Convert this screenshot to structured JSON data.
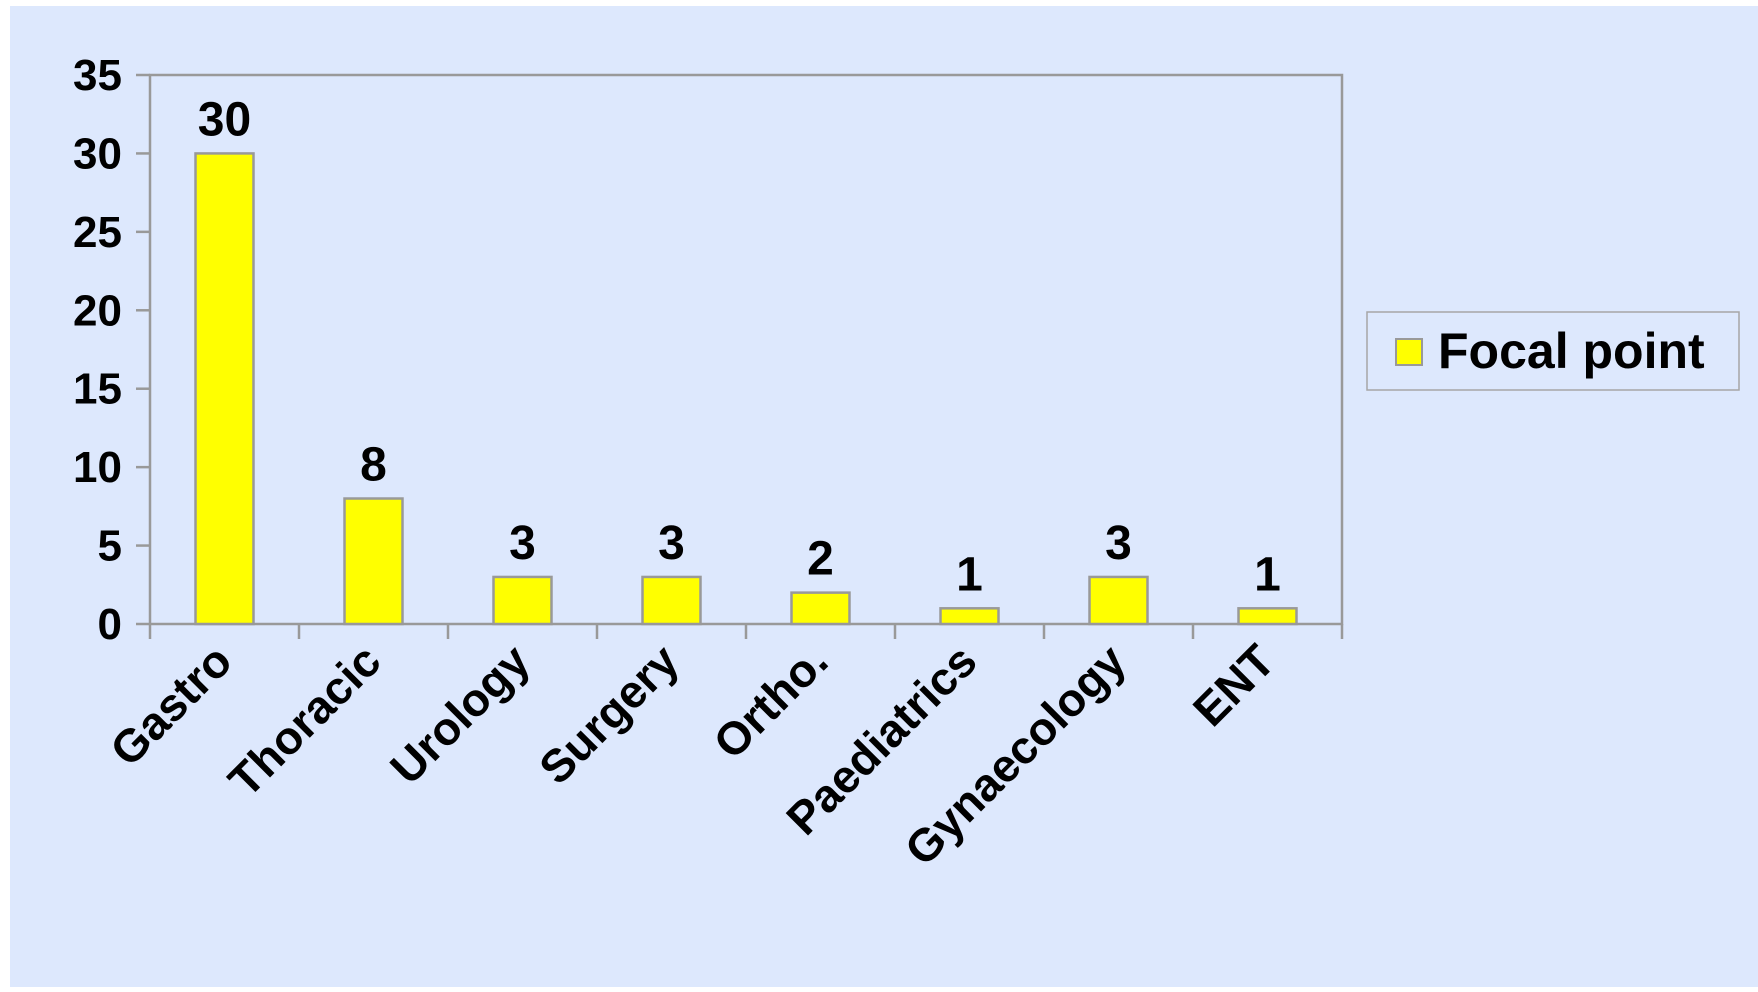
{
  "chart_data": {
    "type": "bar",
    "categories": [
      "Gastro",
      "Thoracic",
      "Urology",
      "Surgery",
      "Ortho.",
      "Paediatrics",
      "Gynaecology",
      "ENT"
    ],
    "series": [
      {
        "name": "Focal point",
        "values": [
          30,
          8,
          3,
          3,
          2,
          1,
          3,
          1
        ]
      }
    ],
    "ylim": [
      0,
      35
    ],
    "yticks": [
      0,
      5,
      10,
      15,
      20,
      25,
      30,
      35
    ],
    "grid": false,
    "legend": {
      "position": "right",
      "label": "Focal point"
    },
    "data_labels": [
      "30",
      "8",
      "3",
      "3",
      "2",
      "1",
      "3",
      "1"
    ],
    "colors": {
      "background": "#dde8fd",
      "bar": "#ffff00",
      "bar_stroke": "#999999",
      "axis": "#999999"
    }
  }
}
